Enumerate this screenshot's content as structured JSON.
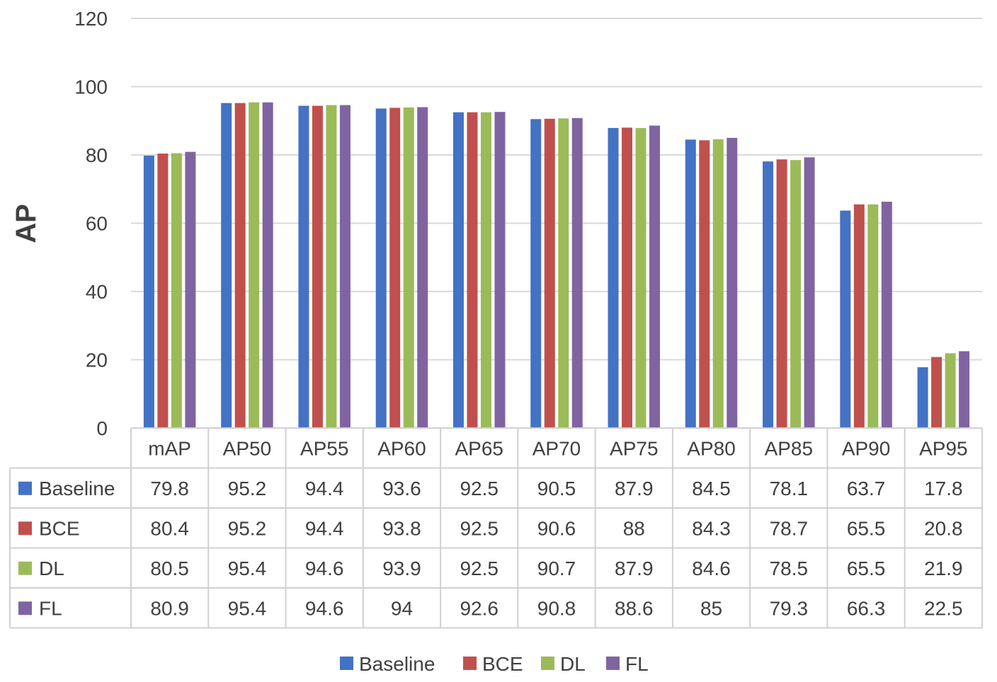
{
  "chart_data": {
    "type": "bar",
    "title": "",
    "xlabel": "",
    "ylabel": "AP",
    "ylim": [
      0,
      120
    ],
    "yticks": [
      0,
      20,
      40,
      60,
      80,
      100,
      120
    ],
    "grid": true,
    "legend_position": "bottom",
    "data_table": true,
    "categories": [
      "mAP",
      "AP50",
      "AP55",
      "AP60",
      "AP65",
      "AP70",
      "AP75",
      "AP80",
      "AP85",
      "AP90",
      "AP95"
    ],
    "series": [
      {
        "name": "Baseline",
        "color": "#4472C4",
        "values": [
          79.8,
          95.2,
          94.4,
          93.6,
          92.5,
          90.5,
          87.9,
          84.5,
          78.1,
          63.7,
          17.8
        ],
        "labels": [
          "79.8",
          "95.2",
          "94.4",
          "93.6",
          "92.5",
          "90.5",
          "87.9",
          "84.5",
          "78.1",
          "63.7",
          "17.8"
        ]
      },
      {
        "name": "BCE",
        "color": "#C0504D",
        "values": [
          80.4,
          95.2,
          94.4,
          93.8,
          92.5,
          90.6,
          88,
          84.3,
          78.7,
          65.5,
          20.8
        ],
        "labels": [
          "80.4",
          "95.2",
          "94.4",
          "93.8",
          "92.5",
          "90.6",
          "88",
          "84.3",
          "78.7",
          "65.5",
          "20.8"
        ]
      },
      {
        "name": "DL",
        "color": "#9BBB59",
        "values": [
          80.5,
          95.4,
          94.6,
          93.9,
          92.5,
          90.7,
          87.9,
          84.6,
          78.5,
          65.5,
          21.9
        ],
        "labels": [
          "80.5",
          "95.4",
          "94.6",
          "93.9",
          "92.5",
          "90.7",
          "87.9",
          "84.6",
          "78.5",
          "65.5",
          "21.9"
        ]
      },
      {
        "name": "FL",
        "color": "#8064A2",
        "values": [
          80.9,
          95.4,
          94.6,
          94,
          92.6,
          90.8,
          88.6,
          85,
          79.3,
          66.3,
          22.5
        ],
        "labels": [
          "80.9",
          "95.4",
          "94.6",
          "94",
          "92.6",
          "90.8",
          "88.6",
          "85",
          "79.3",
          "66.3",
          "22.5"
        ]
      }
    ]
  }
}
